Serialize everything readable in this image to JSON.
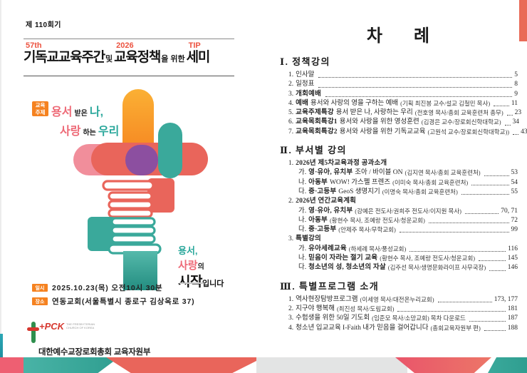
{
  "accents": {
    "coral": "#ec5340",
    "orange_badge": "#f58220",
    "teal": "#2aa79b",
    "pink": "#ee6a77",
    "purple": "#8c4fa0",
    "red_bar": "#e96b57"
  },
  "left_page": {
    "session": "제 110회기",
    "title": {
      "sup1": "57th",
      "word1": "기독교교육주간",
      "conj1": "및",
      "sup2": "2026",
      "word2": "교육정책",
      "conj2": "을 위한",
      "sup3": "TIP",
      "word3": "세미"
    },
    "theme": {
      "badge_line1": "교육",
      "badge_line2": "주제",
      "w1": "용서",
      "w2": "받은",
      "w3": "나,",
      "w4": "사랑",
      "w5": "하는",
      "w6": "우리"
    },
    "slogan": {
      "l1": "용서,",
      "l2a": "사랑",
      "l2b": "의",
      "l3a": "시작",
      "l3b": "입니다"
    },
    "info": [
      {
        "badge": "일시",
        "text": "2025.10.23(목) 오전10시 30분"
      },
      {
        "badge": "장소",
        "text": "연동교회(서울특별시 종로구 김상옥로 37)"
      }
    ],
    "logo": {
      "pck": "+PCK",
      "tiny": "THE PRESBYTERIAN CHURCH OF KOREA",
      "org": "대한예수교장로회총회 교육자원부"
    }
  },
  "right_page": {
    "title": "차례",
    "toc": {
      "sections": [
        {
          "heading": "Ⅰ. 정책강의",
          "items": [
            {
              "n": "1.",
              "t": "인사말",
              "p": "5",
              "lvl": 1
            },
            {
              "n": "2.",
              "t": "일정표",
              "p": "8",
              "lvl": 1
            },
            {
              "n": "3.",
              "b": "개회예배",
              "p": "9",
              "lvl": 1
            },
            {
              "n": "4.",
              "b": "예배",
              "t": "용서와 사랑의 영을 구하는 예배",
              "d": "(기획 최진봉 교수/설교 김철민 목사)",
              "p": "11",
              "lvl": 1
            },
            {
              "n": "5.",
              "b": "교육주제특강",
              "t": "용서 받은 나, 사랑하는 우리",
              "d": "(전호영 목사/총회 교육훈련처 총무)",
              "p": "23",
              "lvl": 1
            },
            {
              "n": "6.",
              "b": "교육목회특강1",
              "t": "용서와 사랑을 위한 영성훈련",
              "d": "(김경은 교수/장로회신학대학교)",
              "p": "34",
              "lvl": 1
            },
            {
              "n": "7.",
              "b": "교육목회특강2",
              "t": "용서와 사랑을 위한 기독교교육",
              "d": "(고원석 교수/장로회신학대학교))",
              "p": "43",
              "lvl": 1
            }
          ]
        },
        {
          "heading": "Ⅱ. 부서별 강의",
          "items": [
            {
              "n": "1.",
              "b": "2026년 제5차교육과정 공과소개",
              "header": true,
              "lvl": 1
            },
            {
              "n": "가.",
              "b": "영·유아, 유치부",
              "t": "조아 / 바이블 ON",
              "d": "(김지연 목사/총회 교육훈련처)",
              "p": "53",
              "lvl": 2
            },
            {
              "n": "나.",
              "b": "아동부",
              "t": "WOW! 가스펠 프렌즈",
              "d": "(이미숙 목사/총회 교육훈련처)",
              "p": "54",
              "lvl": 2
            },
            {
              "n": "다.",
              "b": "중·고등부",
              "t": "GeoS 생명지기",
              "d": "(이명숙 목사/총회 교육훈련처)",
              "p": "55",
              "lvl": 2
            },
            {
              "n": "2.",
              "b": "2026년 연간교육계획",
              "header": true,
              "lvl": 1
            },
            {
              "n": "가.",
              "b": "영·유아, 유치부",
              "d": "(강예은 전도사/권희주 전도사/이지원 목사)",
              "p": "70, 71",
              "lvl": 2
            },
            {
              "n": "나.",
              "b": "아동부",
              "d": "(황현수 목사, 조예랑 전도사/청운교회)",
              "p": "72",
              "lvl": 2
            },
            {
              "n": "다.",
              "b": "중·고등부",
              "d": "(안제주 목사/무학교회)",
              "p": "99",
              "lvl": 2
            },
            {
              "n": "3.",
              "b": "특별강의",
              "header": true,
              "lvl": 1
            },
            {
              "n": "가.",
              "b": "유아세례교육",
              "d": "(하세례 목사/풍성교회)",
              "p": "116",
              "lvl": 2
            },
            {
              "n": "나.",
              "b": "믿음이 자라는 절기 교육",
              "d": "(황현수 목사, 조예랑 전도사/청운교회)",
              "p": "145",
              "lvl": 2
            },
            {
              "n": "다.",
              "b": "청소년의 성, 청소년의 자살",
              "d": "(김주선 목사/생명문화라이프 사무국장)",
              "p": "146",
              "lvl": 2
            }
          ]
        },
        {
          "heading": "Ⅲ. 특별프로그램 소개",
          "items": [
            {
              "n": "1.",
              "t": "역사현장탐방프로그램",
              "d": "(이세영 목사/대전온누리교회)",
              "p": "173, 177",
              "lvl": 1
            },
            {
              "n": "2.",
              "t": "지구야 행복해",
              "d": "(최진성 목사/도림교회)",
              "p": "181",
              "lvl": 1
            },
            {
              "n": "3.",
              "t": "수험생을 위한  50일 기도회",
              "d": "(임준모 목사/소망교회) 목차 다운로드",
              "p": "187",
              "lvl": 1
            },
            {
              "n": "4.",
              "t": "청소년 입교교육 I-Faith 내가 믿음을 걸어갑니다",
              "d": "(총회교육자원부 편)",
              "p": "188",
              "lvl": 1
            }
          ]
        }
      ]
    }
  }
}
